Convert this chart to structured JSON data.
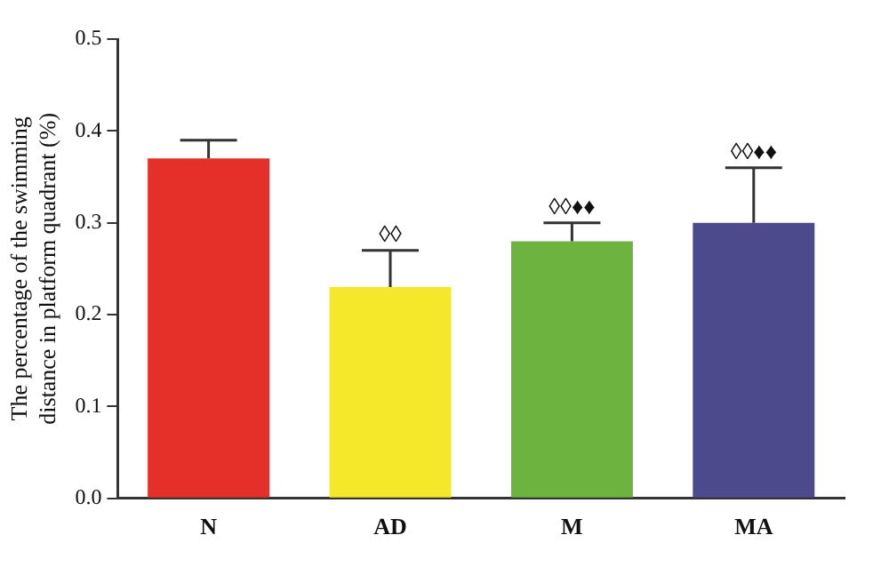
{
  "chart_data": {
    "type": "bar",
    "ylabel": "The percentage of the swimming\ndistance in platform quadrant (%)",
    "categories": [
      "N",
      "AD",
      "M",
      "MA"
    ],
    "values": [
      0.37,
      0.23,
      0.28,
      0.3
    ],
    "colors": [
      "#e5302a",
      "#f5e82a",
      "#6db33f",
      "#4c4a8c"
    ],
    "errors": [
      [
        0.37,
        0.39
      ],
      [
        0.23,
        0.27
      ],
      [
        0.28,
        0.3
      ],
      [
        0.3,
        0.36
      ]
    ],
    "ylim": [
      0,
      0.5
    ],
    "yticks": [
      {
        "value": 0,
        "label": "0.0"
      },
      0.1,
      0.2,
      0.3,
      0.4,
      0.5
    ],
    "annotations": [
      {
        "text": "◊◊",
        "x": "AD",
        "y": 0.27
      },
      {
        "text": "◊◊♦♦",
        "x": "M",
        "y": 0.3
      },
      {
        "text": "◊◊♦♦",
        "x": "MA",
        "y": 0.36
      }
    ],
    "grid": false,
    "legend": false
  }
}
